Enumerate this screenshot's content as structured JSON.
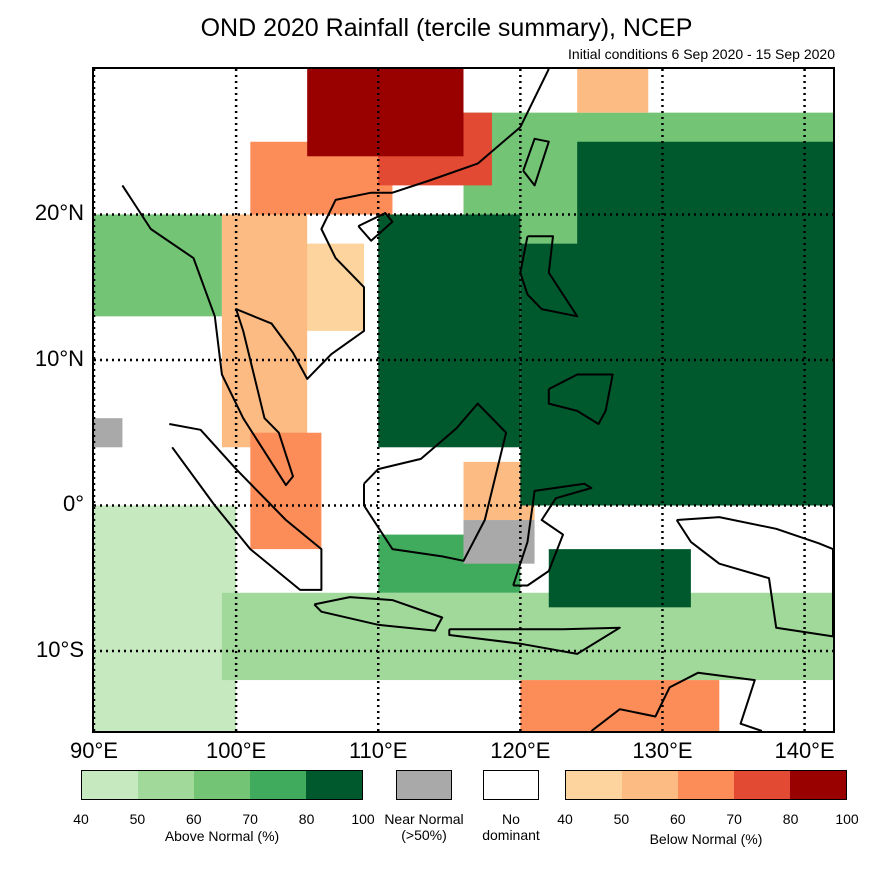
{
  "title": "OND 2020 Rainfall (tercile summary), NCEP",
  "subtitle": "Initial conditions 6 Sep 2020 - 15 Sep 2020",
  "map": {
    "lon_range": [
      90,
      142
    ],
    "lat_range": [
      -15.5,
      30
    ],
    "lat_labels": [
      {
        "value": 20,
        "label": "20°N"
      },
      {
        "value": 10,
        "label": "10°N"
      },
      {
        "value": 0,
        "label": "0°"
      },
      {
        "value": -10,
        "label": "10°S"
      }
    ],
    "lon_labels": [
      {
        "value": 90,
        "label": "90°E"
      },
      {
        "value": 100,
        "label": "100°E"
      },
      {
        "value": 110,
        "label": "110°E"
      },
      {
        "value": 120,
        "label": "120°E"
      },
      {
        "value": 130,
        "label": "130°E"
      },
      {
        "value": 140,
        "label": "140°E"
      }
    ],
    "regions": [
      {
        "category": "below-80-100",
        "lon": [
          105,
          116
        ],
        "lat": [
          24,
          30
        ]
      },
      {
        "category": "below-70-80",
        "lon": [
          110,
          118
        ],
        "lat": [
          22,
          27
        ]
      },
      {
        "category": "below-60-70",
        "lon": [
          101,
          111
        ],
        "lat": [
          20,
          25
        ]
      },
      {
        "category": "below-50-60",
        "lon": [
          99,
          105
        ],
        "lat": [
          4,
          20
        ]
      },
      {
        "category": "below-40-50",
        "lon": [
          104,
          109
        ],
        "lat": [
          12,
          18
        ]
      },
      {
        "category": "below-60-70",
        "lon": [
          101,
          106
        ],
        "lat": [
          -3,
          5
        ]
      },
      {
        "category": "below-50-60",
        "lon": [
          116,
          121
        ],
        "lat": [
          -1,
          3
        ]
      },
      {
        "category": "below-60-70",
        "lon": [
          120,
          134
        ],
        "lat": [
          -15.5,
          -12
        ]
      },
      {
        "category": "below-50-60",
        "lon": [
          124,
          129
        ],
        "lat": [
          27,
          30
        ]
      },
      {
        "category": "above-80-100",
        "lon": [
          110,
          120
        ],
        "lat": [
          4,
          20
        ]
      },
      {
        "category": "above-80-100",
        "lon": [
          120,
          142
        ],
        "lat": [
          0,
          18
        ]
      },
      {
        "category": "above-80-100",
        "lon": [
          124,
          142
        ],
        "lat": [
          14,
          25
        ]
      },
      {
        "category": "above-80-100",
        "lon": [
          122,
          132
        ],
        "lat": [
          -7,
          -3
        ]
      },
      {
        "category": "above-70-80",
        "lon": [
          110,
          120
        ],
        "lat": [
          -6,
          -2
        ]
      },
      {
        "category": "above-60-70",
        "lon": [
          116,
          142
        ],
        "lat": [
          18,
          27
        ]
      },
      {
        "category": "above-60-70",
        "lon": [
          90,
          99
        ],
        "lat": [
          13,
          20
        ]
      },
      {
        "category": "above-50-60",
        "lon": [
          99,
          142
        ],
        "lat": [
          -12,
          -6
        ]
      },
      {
        "category": "above-40-50",
        "lon": [
          90,
          100
        ],
        "lat": [
          -15.5,
          0
        ]
      },
      {
        "category": "near-normal",
        "lon": [
          116,
          121
        ],
        "lat": [
          -4,
          -1
        ]
      },
      {
        "category": "near-normal",
        "lon": [
          90,
          92
        ],
        "lat": [
          4,
          6
        ]
      }
    ]
  },
  "legend": {
    "above": {
      "caption": "Above Normal (%)",
      "ticks": [
        "40",
        "50",
        "60",
        "70",
        "80",
        "100"
      ],
      "colors": [
        "#c7e9c0",
        "#a1d99b",
        "#74c476",
        "#41ab5d",
        "#00592c"
      ]
    },
    "near_normal": {
      "caption_line1": "Near Normal",
      "caption_line2": "(>50%)",
      "color": "#a9a9a9"
    },
    "no_dominant": {
      "caption_line1": "No",
      "caption_line2": "dominant",
      "color": "#ffffff"
    },
    "below": {
      "caption": "Below Normal (%)",
      "ticks": [
        "40",
        "50",
        "60",
        "70",
        "80",
        "100"
      ],
      "colors": [
        "#fdd49e",
        "#fdbb84",
        "#fc8d59",
        "#e34a33",
        "#990000"
      ]
    }
  }
}
